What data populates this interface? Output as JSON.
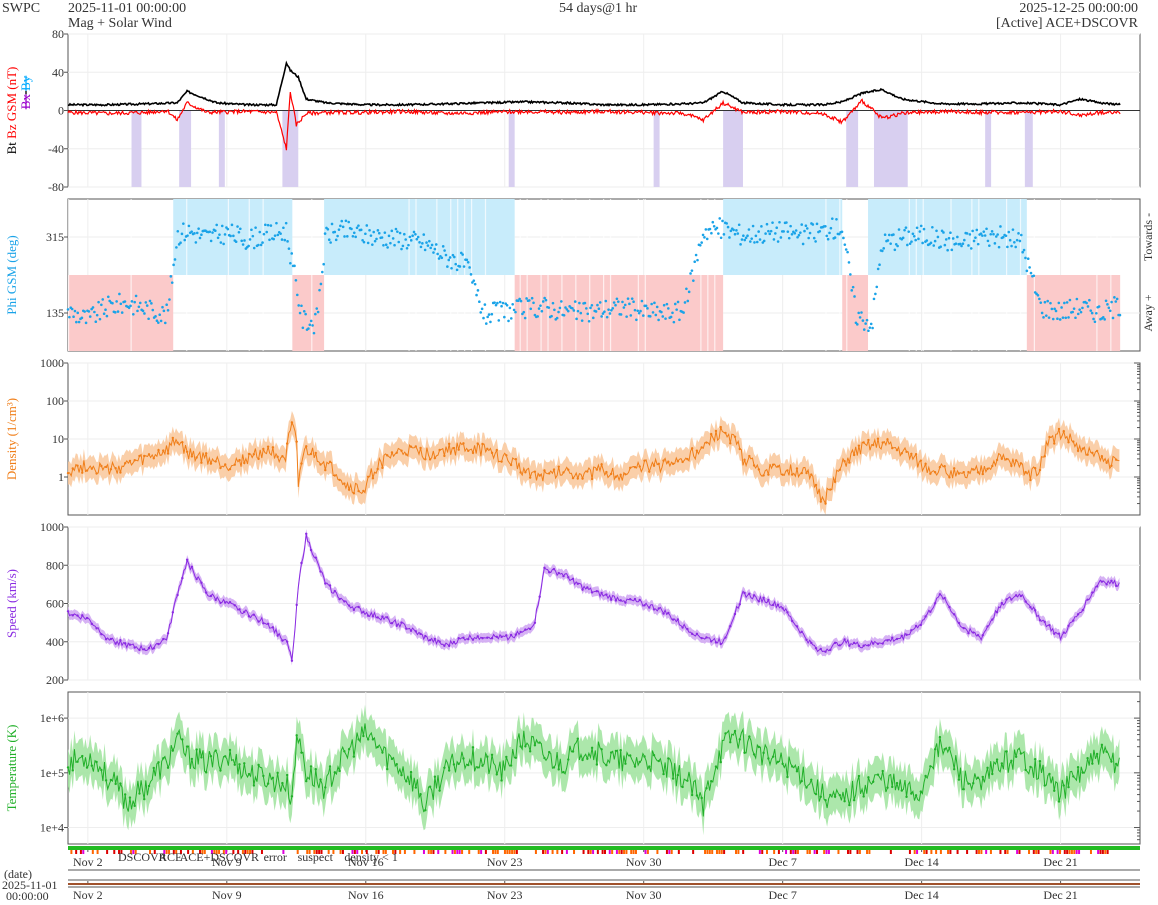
{
  "header": {
    "org": "SWPC",
    "start": "2025-11-01 00:00:00",
    "subtitle": "Mag + Solar Wind",
    "span": "54 days@1 hr",
    "end": "2025-12-25 00:00:00",
    "source": "[Active] ACE+DSCOVR"
  },
  "colors": {
    "bt": "#000000",
    "bz": "#ff0000",
    "bx": "#9900cc",
    "by": "#00aaff",
    "phi": "#1aa3e8",
    "phi_towards_bg": "#c8ecfb",
    "phi_away_bg": "#fbcaca",
    "density": "#f07f1a",
    "density_band": "#f9c79a",
    "speed": "#8a2be2",
    "speed_band": "#cfa4f2",
    "temperature": "#22b02a",
    "temperature_band": "#9ee39c",
    "bz_south_shade": "#d8cff0"
  },
  "source_legend": [
    {
      "label": "DSCOVR",
      "color": "#0000cc"
    },
    {
      "label": "ACE",
      "color": "#22aa22"
    },
    {
      "label": "ACE+DSCOVR",
      "color": "#dd00dd"
    },
    {
      "label": "error",
      "color": "#dd0000"
    },
    {
      "label": "suspect",
      "color": "#ffaa00"
    },
    {
      "label": "density < 1",
      "color": "#ff6600"
    }
  ],
  "bottom": {
    "date_label": "(date)",
    "date_value": "2025-11-01",
    "time_value": "00:00:00"
  },
  "chart_data": [
    {
      "type": "line",
      "panel": "mag",
      "ylabel_parts": [
        "Bt",
        "Bz GSM (nT)",
        "Bx",
        "By"
      ],
      "ylim": [
        -80,
        80
      ],
      "yticks": [
        "80",
        "40",
        "0",
        "-40",
        "-80"
      ],
      "x_ticks": [
        "Nov 2",
        "Nov 9",
        "Nov 16",
        "Nov 23",
        "Nov 30",
        "Dec 7",
        "Dec 14",
        "Dec 21"
      ],
      "x_tick_days": [
        1,
        8,
        15,
        22,
        29,
        36,
        43,
        50
      ],
      "xlim_days": [
        0,
        54
      ],
      "series": [
        {
          "name": "Bt",
          "day": [
            0,
            2,
            4,
            5.5,
            6,
            7.5,
            9,
            10.5,
            11.0,
            11.2,
            11.6,
            12,
            13,
            15,
            17,
            19,
            21,
            23,
            25,
            27,
            29,
            31,
            32,
            33,
            34,
            36,
            38,
            39,
            40,
            41,
            42,
            44,
            46,
            48,
            50,
            51,
            52,
            53
          ],
          "values": [
            6,
            6,
            7,
            8,
            20,
            8,
            6,
            6,
            50,
            42,
            35,
            12,
            8,
            6,
            6,
            7,
            8,
            9,
            8,
            6,
            6,
            7,
            8,
            20,
            8,
            6,
            6,
            9,
            18,
            22,
            12,
            7,
            7,
            8,
            6,
            12,
            8,
            6
          ]
        },
        {
          "name": "Bz",
          "day": [
            0,
            2,
            4,
            5,
            5.5,
            6,
            7,
            9,
            10.5,
            11.0,
            11.2,
            11.5,
            12,
            13,
            15,
            17,
            19,
            21,
            23,
            25,
            27,
            29,
            31,
            32,
            33,
            34,
            36,
            38,
            39,
            40,
            41,
            42,
            44,
            46,
            48,
            50,
            51,
            52,
            53
          ],
          "values": [
            -2,
            -3,
            -2,
            0,
            -10,
            8,
            -2,
            -1,
            -2,
            -40,
            20,
            -15,
            -3,
            -2,
            -2,
            -1,
            -3,
            -2,
            -1,
            -2,
            -1,
            -2,
            -3,
            -10,
            8,
            -2,
            -1,
            -3,
            -12,
            10,
            -8,
            -3,
            -1,
            -2,
            -2,
            -1,
            -5,
            -2,
            -2
          ]
        }
      ]
    },
    {
      "type": "scatter",
      "panel": "phi",
      "ylabel": "Phi GSM (deg)",
      "ylim": [
        45,
        405
      ],
      "yticks": [
        "315",
        "135"
      ],
      "side_labels": [
        "Towards -",
        "Away +"
      ],
      "sectors": [
        {
          "start": 0,
          "end": 5.3,
          "sector": "away"
        },
        {
          "start": 5.3,
          "end": 11.3,
          "sector": "towards"
        },
        {
          "start": 11.3,
          "end": 12.9,
          "sector": "away"
        },
        {
          "start": 12.9,
          "end": 22.5,
          "sector": "towards"
        },
        {
          "start": 22.5,
          "end": 33.0,
          "sector": "away"
        },
        {
          "start": 33.0,
          "end": 39.0,
          "sector": "towards"
        },
        {
          "start": 39.0,
          "end": 40.3,
          "sector": "away"
        },
        {
          "start": 40.3,
          "end": 48.3,
          "sector": "towards"
        },
        {
          "start": 48.3,
          "end": 53.0,
          "sector": "away"
        }
      ],
      "series": [
        {
          "name": "Phi",
          "day": [
            0,
            1,
            2,
            3,
            4,
            5,
            5.5,
            6,
            7,
            8,
            9,
            10,
            11,
            11.8,
            12.5,
            13,
            14,
            15,
            16,
            17,
            18,
            19,
            20,
            21,
            22,
            23,
            24,
            25,
            26,
            27,
            28,
            29,
            30,
            31,
            32,
            33,
            34,
            35,
            36,
            37,
            38,
            39,
            39.7,
            40.5,
            41,
            42,
            43,
            44,
            45,
            46,
            47,
            48,
            49,
            50,
            51,
            52,
            53
          ],
          "values": [
            140,
            120,
            150,
            160,
            145,
            130,
            320,
            330,
            315,
            325,
            310,
            320,
            330,
            120,
            110,
            320,
            330,
            320,
            315,
            310,
            300,
            270,
            250,
            130,
            140,
            145,
            150,
            140,
            135,
            145,
            150,
            140,
            135,
            140,
            330,
            335,
            320,
            325,
            330,
            320,
            330,
            340,
            130,
            110,
            300,
            315,
            320,
            310,
            300,
            320,
            315,
            305,
            150,
            140,
            150,
            135,
            155
          ]
        }
      ]
    },
    {
      "type": "line",
      "panel": "density",
      "ylabel": "Density (1/cm³)",
      "yscale": "log",
      "ylim": [
        0.1,
        1000
      ],
      "yticks": [
        "1000",
        "100",
        "10",
        "1"
      ],
      "series": [
        {
          "name": "Density",
          "day": [
            0,
            1,
            2,
            3,
            4,
            5,
            5.5,
            6,
            7,
            8,
            9,
            10,
            11,
            11.3,
            11.6,
            12,
            13,
            14,
            15,
            16,
            17,
            18,
            19,
            20,
            21,
            22,
            23,
            24,
            25,
            26,
            27,
            28,
            29,
            30,
            31,
            32,
            33,
            34,
            35,
            36,
            37,
            37.5,
            38,
            38.5,
            39,
            40,
            41,
            42,
            43,
            44,
            45,
            46,
            47,
            48,
            48.5,
            49,
            50,
            51,
            52,
            53
          ],
          "values": [
            1.5,
            2,
            1.5,
            2,
            3,
            5,
            9,
            4,
            3,
            2,
            3,
            5,
            3,
            20,
            0.5,
            5,
            2,
            0.6,
            0.4,
            3,
            5,
            4,
            5,
            6,
            5,
            3,
            1.5,
            1,
            1.5,
            1.2,
            1.5,
            1,
            2,
            2,
            3,
            5,
            15,
            3,
            1.5,
            1.5,
            1.5,
            0.8,
            0.2,
            0.5,
            2,
            6,
            8,
            5,
            2,
            1.5,
            1,
            1.5,
            3,
            2,
            1,
            2,
            15,
            5,
            3,
            2
          ]
        }
      ]
    },
    {
      "type": "line",
      "panel": "speed",
      "ylabel": "Speed (km/s)",
      "ylim": [
        200,
        1000
      ],
      "yticks": [
        "1000",
        "800",
        "600",
        "400",
        "200"
      ],
      "series": [
        {
          "name": "Speed",
          "day": [
            0,
            1,
            2,
            3,
            4,
            5,
            5.5,
            6,
            7,
            8,
            9,
            10,
            11,
            11.3,
            11.6,
            12,
            13,
            14,
            15,
            16,
            17,
            18,
            19,
            20,
            21,
            22,
            23,
            23.5,
            24,
            25,
            26,
            27,
            28,
            29,
            30,
            31,
            32,
            33,
            34,
            35,
            36,
            37,
            37.5,
            38,
            39,
            40,
            41,
            42,
            43,
            44,
            45,
            46,
            47,
            48,
            49,
            50,
            51,
            52,
            53
          ],
          "values": [
            550,
            520,
            420,
            380,
            360,
            420,
            650,
            820,
            650,
            600,
            550,
            500,
            400,
            300,
            700,
            950,
            700,
            600,
            550,
            520,
            480,
            420,
            380,
            420,
            430,
            420,
            450,
            500,
            780,
            750,
            680,
            640,
            620,
            600,
            560,
            480,
            420,
            400,
            650,
            620,
            580,
            440,
            380,
            350,
            400,
            380,
            400,
            420,
            500,
            650,
            480,
            420,
            600,
            650,
            520,
            420,
            560,
            720,
            700
          ]
        }
      ]
    },
    {
      "type": "line",
      "panel": "temperature",
      "ylabel": "Temperature (K)",
      "yscale": "log",
      "ylim": [
        5000,
        3000000
      ],
      "yticks": [
        "1e+6",
        "1e+5",
        "1e+4"
      ],
      "series": [
        {
          "name": "Temperature",
          "day": [
            0,
            1,
            2,
            3,
            4,
            5,
            5.5,
            6,
            7,
            8,
            9,
            10,
            11,
            11.3,
            11.6,
            12,
            13,
            14,
            15,
            16,
            17,
            18,
            19,
            20,
            21,
            22,
            23,
            24,
            25,
            26,
            27,
            28,
            29,
            30,
            31,
            32,
            32.5,
            33,
            33.5,
            34,
            35,
            36,
            37,
            37.5,
            38,
            39,
            40,
            41,
            42,
            43,
            44,
            45,
            46,
            47,
            48,
            49,
            50,
            51,
            52,
            53
          ],
          "values": [
            150000,
            200000,
            80000,
            25000,
            60000,
            150000,
            400000,
            200000,
            150000,
            200000,
            100000,
            80000,
            60000,
            30000,
            400000,
            100000,
            50000,
            200000,
            500000,
            200000,
            100000,
            20000,
            100000,
            200000,
            150000,
            100000,
            400000,
            200000,
            150000,
            300000,
            200000,
            150000,
            180000,
            120000,
            80000,
            20000,
            100000,
            300000,
            500000,
            400000,
            200000,
            150000,
            100000,
            60000,
            40000,
            30000,
            60000,
            80000,
            50000,
            40000,
            300000,
            80000,
            50000,
            150000,
            200000,
            100000,
            40000,
            100000,
            200000,
            150000
          ]
        }
      ]
    }
  ]
}
